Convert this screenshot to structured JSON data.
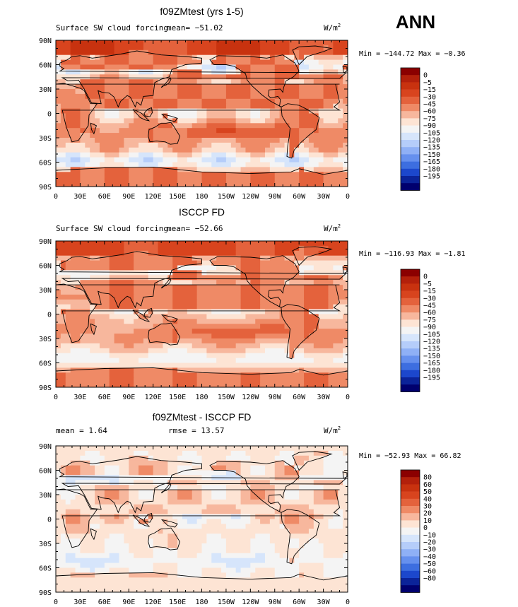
{
  "season": "ANN",
  "units_text": "W/m",
  "units_sup": "2",
  "panels": [
    {
      "title": "f09ZMtest (yrs 1-5)",
      "left_label": "Surface SW cloud forcing",
      "mean_text": "mean= −51.02",
      "right_text": "",
      "minmax": "Min = −144.72 Max =  −0.36",
      "levels": [
        "0",
        "−5",
        "−15",
        "−30",
        "−45",
        "−60",
        "−75",
        "−90",
        "−105",
        "−120",
        "−135",
        "−150",
        "−165",
        "−180",
        "−195"
      ],
      "colors": [
        "#8b0000",
        "#b3200b",
        "#c8320f",
        "#d8441e",
        "#e4623c",
        "#ef8a66",
        "#f7b79d",
        "#fde4d4",
        "#f4f4f4",
        "#d6e5fb",
        "#b5cdfa",
        "#8fb0f6",
        "#6690ee",
        "#3d6ee0",
        "#1c47cc",
        "#0b2399",
        "#00006e"
      ],
      "base_value": -52,
      "variant": "model"
    },
    {
      "title": "ISCCP FD",
      "left_label": "Surface SW cloud forcing",
      "mean_text": "mean= −52.66",
      "right_text": "",
      "minmax": "Min = −116.93 Max =  −1.81",
      "levels": [
        "0",
        "−5",
        "−15",
        "−30",
        "−45",
        "−60",
        "−75",
        "−90",
        "−105",
        "−120",
        "−135",
        "−150",
        "−165",
        "−180",
        "−195"
      ],
      "colors": [
        "#8b0000",
        "#b3200b",
        "#c8320f",
        "#d8441e",
        "#e4623c",
        "#ef8a66",
        "#f7b79d",
        "#fde4d4",
        "#f4f4f4",
        "#d6e5fb",
        "#b5cdfa",
        "#8fb0f6",
        "#6690ee",
        "#3d6ee0",
        "#1c47cc",
        "#0b2399",
        "#00006e"
      ],
      "base_value": -53,
      "variant": "obs"
    },
    {
      "title": "f09ZMtest - ISCCP FD",
      "left_label": "mean =    1.64",
      "mean_text": "",
      "right_text": "rmse =  13.57",
      "minmax": "Min = −52.93 Max =   66.82",
      "levels": [
        "80",
        "60",
        "50",
        "40",
        "30",
        "20",
        "10",
        "0",
        "−10",
        "−20",
        "−30",
        "−40",
        "−50",
        "−60",
        "−80"
      ],
      "colors": [
        "#8b0000",
        "#b3200b",
        "#c8320f",
        "#d8441e",
        "#e4623c",
        "#ef8a66",
        "#f7b79d",
        "#fde4d4",
        "#f4f4f4",
        "#d6e5fb",
        "#b5cdfa",
        "#8fb0f6",
        "#6690ee",
        "#3d6ee0",
        "#1c47cc",
        "#0b2399",
        "#00006e"
      ],
      "base_value": 1.64,
      "variant": "diff"
    }
  ],
  "chart_data": {
    "type": "heatmap",
    "xlabel": "",
    "ylabel": "",
    "x_ticks": [
      "0",
      "30E",
      "60E",
      "90E",
      "120E",
      "150E",
      "180",
      "150W",
      "120W",
      "90W",
      "60W",
      "30W",
      "0"
    ],
    "y_ticks": [
      "90N",
      "60N",
      "30N",
      "0",
      "30S",
      "60S",
      "90S"
    ],
    "xlim": [
      0,
      360
    ],
    "ylim": [
      -90,
      90
    ]
  }
}
